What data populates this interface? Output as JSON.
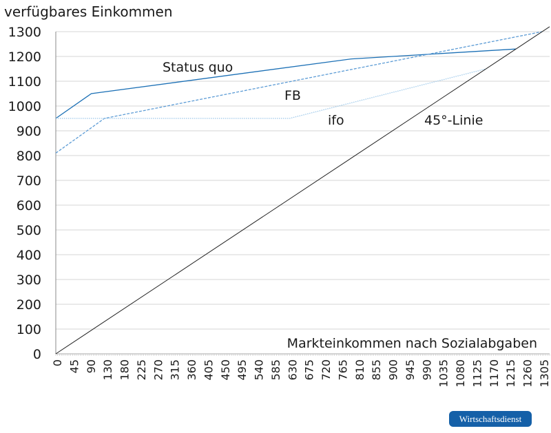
{
  "chart_data": {
    "type": "line",
    "ylabel": "verfügbares Einkommen",
    "xlabel": "Markteinkommen nach Sozialabgaben",
    "ylim": [
      0,
      1300
    ],
    "xlim": [
      0,
      1320
    ],
    "yticks": [
      0,
      100,
      200,
      300,
      400,
      500,
      600,
      700,
      800,
      900,
      1000,
      1100,
      1200,
      1300
    ],
    "xtick_labels": [
      "0",
      "45",
      "90",
      "130",
      "180",
      "225",
      "270",
      "315",
      "360",
      "405",
      "450",
      "495",
      "540",
      "585",
      "630",
      "675",
      "720",
      "765",
      "810",
      "855",
      "900",
      "945",
      "990",
      "1035",
      "1080",
      "1125",
      "1170",
      "1215",
      "1260",
      "1305"
    ],
    "grid": "horizontal",
    "series": [
      {
        "name": "Status quo",
        "color": "#1a6fb5",
        "style": "solid",
        "x": [
          0,
          95,
          790,
          1230
        ],
        "y": [
          950,
          1050,
          1190,
          1230
        ]
      },
      {
        "name": "FB",
        "color": "#5b9bd5",
        "style": "dashed",
        "x": [
          0,
          130,
          1300
        ],
        "y": [
          810,
          950,
          1300
        ]
      },
      {
        "name": "ifo",
        "color": "#9cc8ea",
        "style": "dotted",
        "x": [
          0,
          625,
          1150
        ],
        "y": [
          950,
          950,
          1150
        ]
      },
      {
        "name": "45°-Linie",
        "color": "#222222",
        "style": "solid",
        "x": [
          0,
          1320
        ],
        "y": [
          0,
          1320
        ]
      }
    ]
  },
  "badge": "Wirtschaftsdienst"
}
